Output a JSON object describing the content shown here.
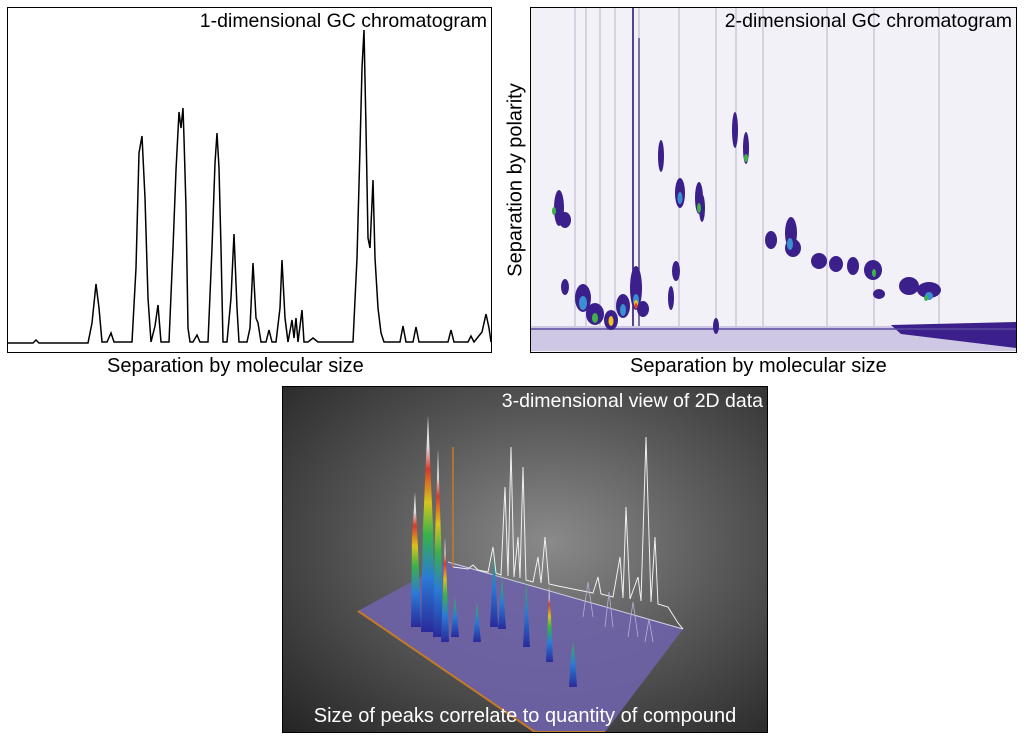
{
  "panels": {
    "one_d": {
      "title": "1-dimensional GC chromatogram",
      "xlabel": "Separation by molecular size"
    },
    "two_d": {
      "title": "2-dimensional GC chromatogram",
      "xlabel": "Separation by molecular size",
      "ylabel": "Separation by polarity"
    },
    "three_d": {
      "title": "3-dimensional view of 2D data",
      "caption": "Size of peaks correlate to quantity of compound"
    }
  },
  "colors": {
    "line": "#000000",
    "plot2d_background": "#f3f1f8",
    "plot2d_peak": "#3b1f8a",
    "plot3d_floor": "#6e63a8"
  }
}
